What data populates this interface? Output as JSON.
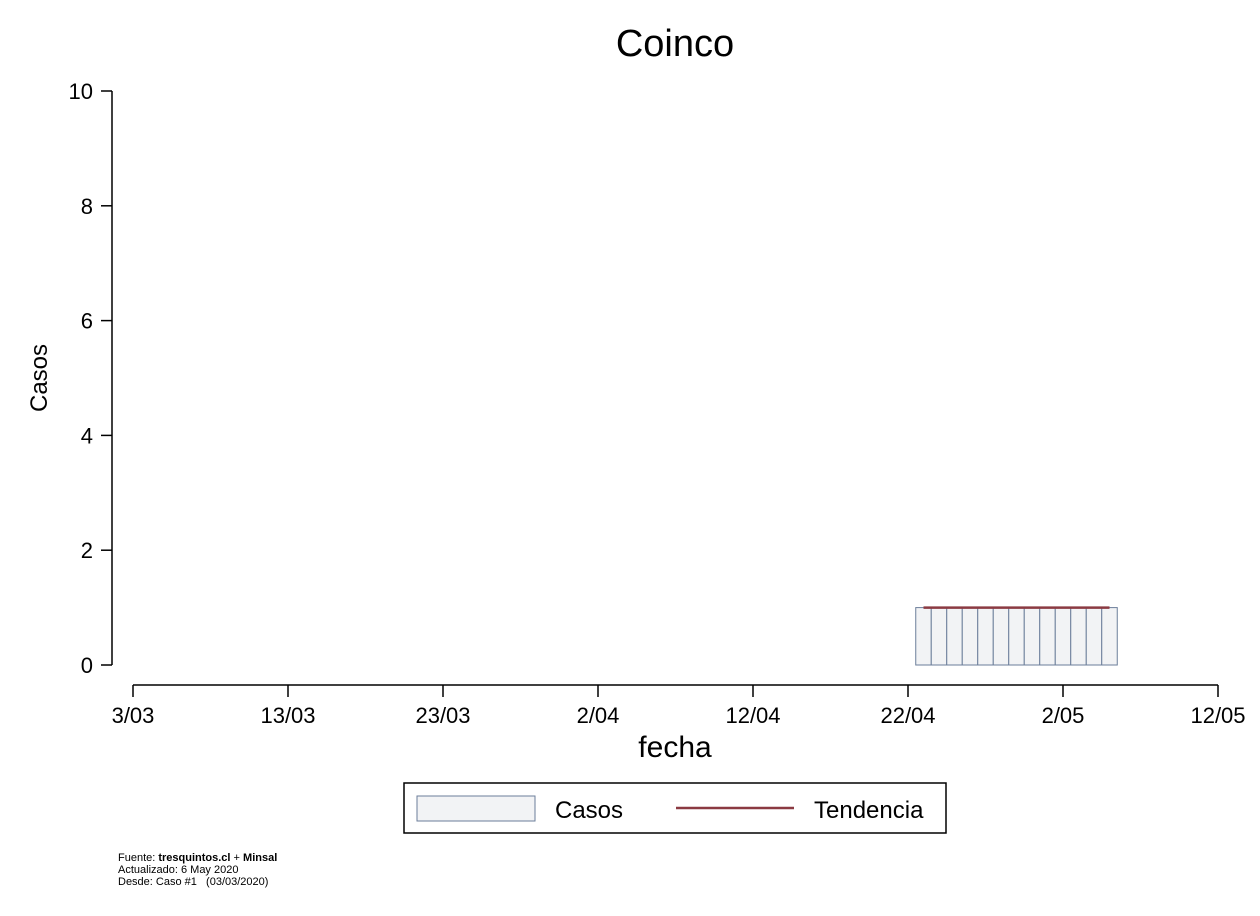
{
  "chart_data": {
    "type": "bar",
    "title": "Coinco",
    "xlabel": "fecha",
    "ylabel": "Casos",
    "x_tick_labels": [
      "3/03",
      "13/03",
      "23/03",
      "2/04",
      "12/04",
      "22/04",
      "2/05",
      "12/05"
    ],
    "x_tick_dates": [
      "2020-03-03",
      "2020-03-13",
      "2020-03-23",
      "2020-04-02",
      "2020-04-12",
      "2020-04-22",
      "2020-05-02",
      "2020-05-12"
    ],
    "xlim": [
      "2020-03-03",
      "2020-05-12"
    ],
    "ylim": [
      0,
      10
    ],
    "y_ticks": [
      0,
      2,
      4,
      6,
      8,
      10
    ],
    "grid": false,
    "legend_position": "bottom",
    "series": [
      {
        "name": "Casos",
        "type": "bar",
        "color": "#f2f3f5",
        "edge_color": "#6b7e9a",
        "x": [
          "2020-04-23",
          "2020-04-24",
          "2020-04-25",
          "2020-04-26",
          "2020-04-27",
          "2020-04-28",
          "2020-04-29",
          "2020-04-30",
          "2020-05-01",
          "2020-05-02",
          "2020-05-03",
          "2020-05-04",
          "2020-05-05"
        ],
        "values": [
          1,
          1,
          1,
          1,
          1,
          1,
          1,
          1,
          1,
          1,
          1,
          1,
          1
        ]
      },
      {
        "name": "Tendencia",
        "type": "line",
        "color": "#8b3a42",
        "x": [
          "2020-04-23",
          "2020-05-05"
        ],
        "values": [
          1,
          1
        ]
      }
    ]
  },
  "footnote": {
    "source_prefix": "Fuente: ",
    "source_site": "tresquintos.cl",
    "source_join": " + ",
    "source_org": "Minsal",
    "updated": "Actualizado: 6 May 2020",
    "since": "Desde: Caso #1   (03/03/2020)"
  }
}
